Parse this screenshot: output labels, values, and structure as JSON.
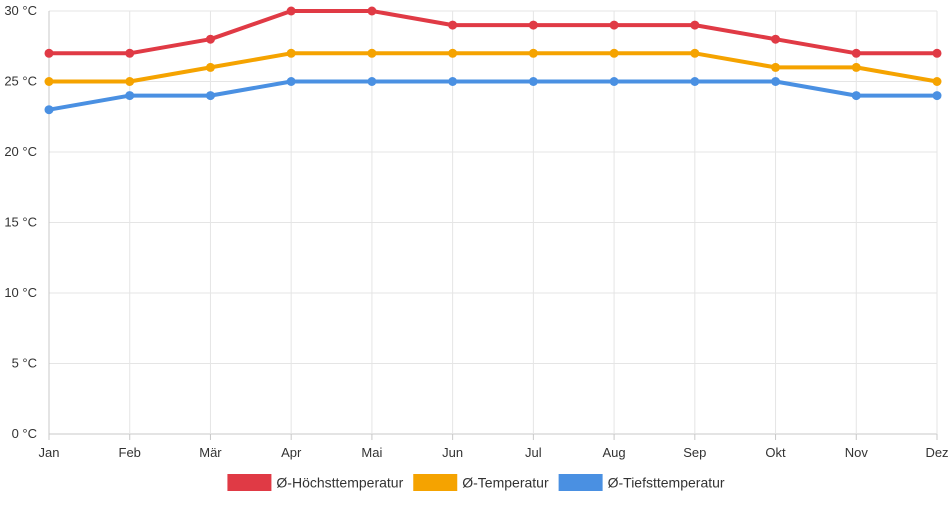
{
  "chart_data": {
    "type": "line",
    "categories": [
      "Jan",
      "Feb",
      "Mär",
      "Apr",
      "Mai",
      "Jun",
      "Jul",
      "Aug",
      "Sep",
      "Okt",
      "Nov",
      "Dez"
    ],
    "y_unit": "°C",
    "ylim": [
      0,
      30
    ],
    "y_ticks": [
      0,
      5,
      10,
      15,
      20,
      25,
      30
    ],
    "y_tick_labels": [
      "0 °C",
      "5 °C",
      "10 °C",
      "15 °C",
      "20 °C",
      "25 °C",
      "30 °C"
    ],
    "grid": true,
    "legend_position": "bottom",
    "series": [
      {
        "name": "Ø-Höchsttemperatur",
        "color": "#e03a45",
        "values": [
          27,
          27,
          28,
          30,
          30,
          29,
          29,
          29,
          29,
          28,
          27,
          27
        ]
      },
      {
        "name": "Ø-Temperatur",
        "color": "#f5a300",
        "values": [
          25,
          25,
          26,
          27,
          27,
          27,
          27,
          27,
          27,
          26,
          26,
          25
        ]
      },
      {
        "name": "Ø-Tiefsttemperatur",
        "color": "#4a90e2",
        "values": [
          23,
          24,
          24,
          25,
          25,
          25,
          25,
          25,
          25,
          25,
          24,
          24
        ]
      }
    ]
  }
}
